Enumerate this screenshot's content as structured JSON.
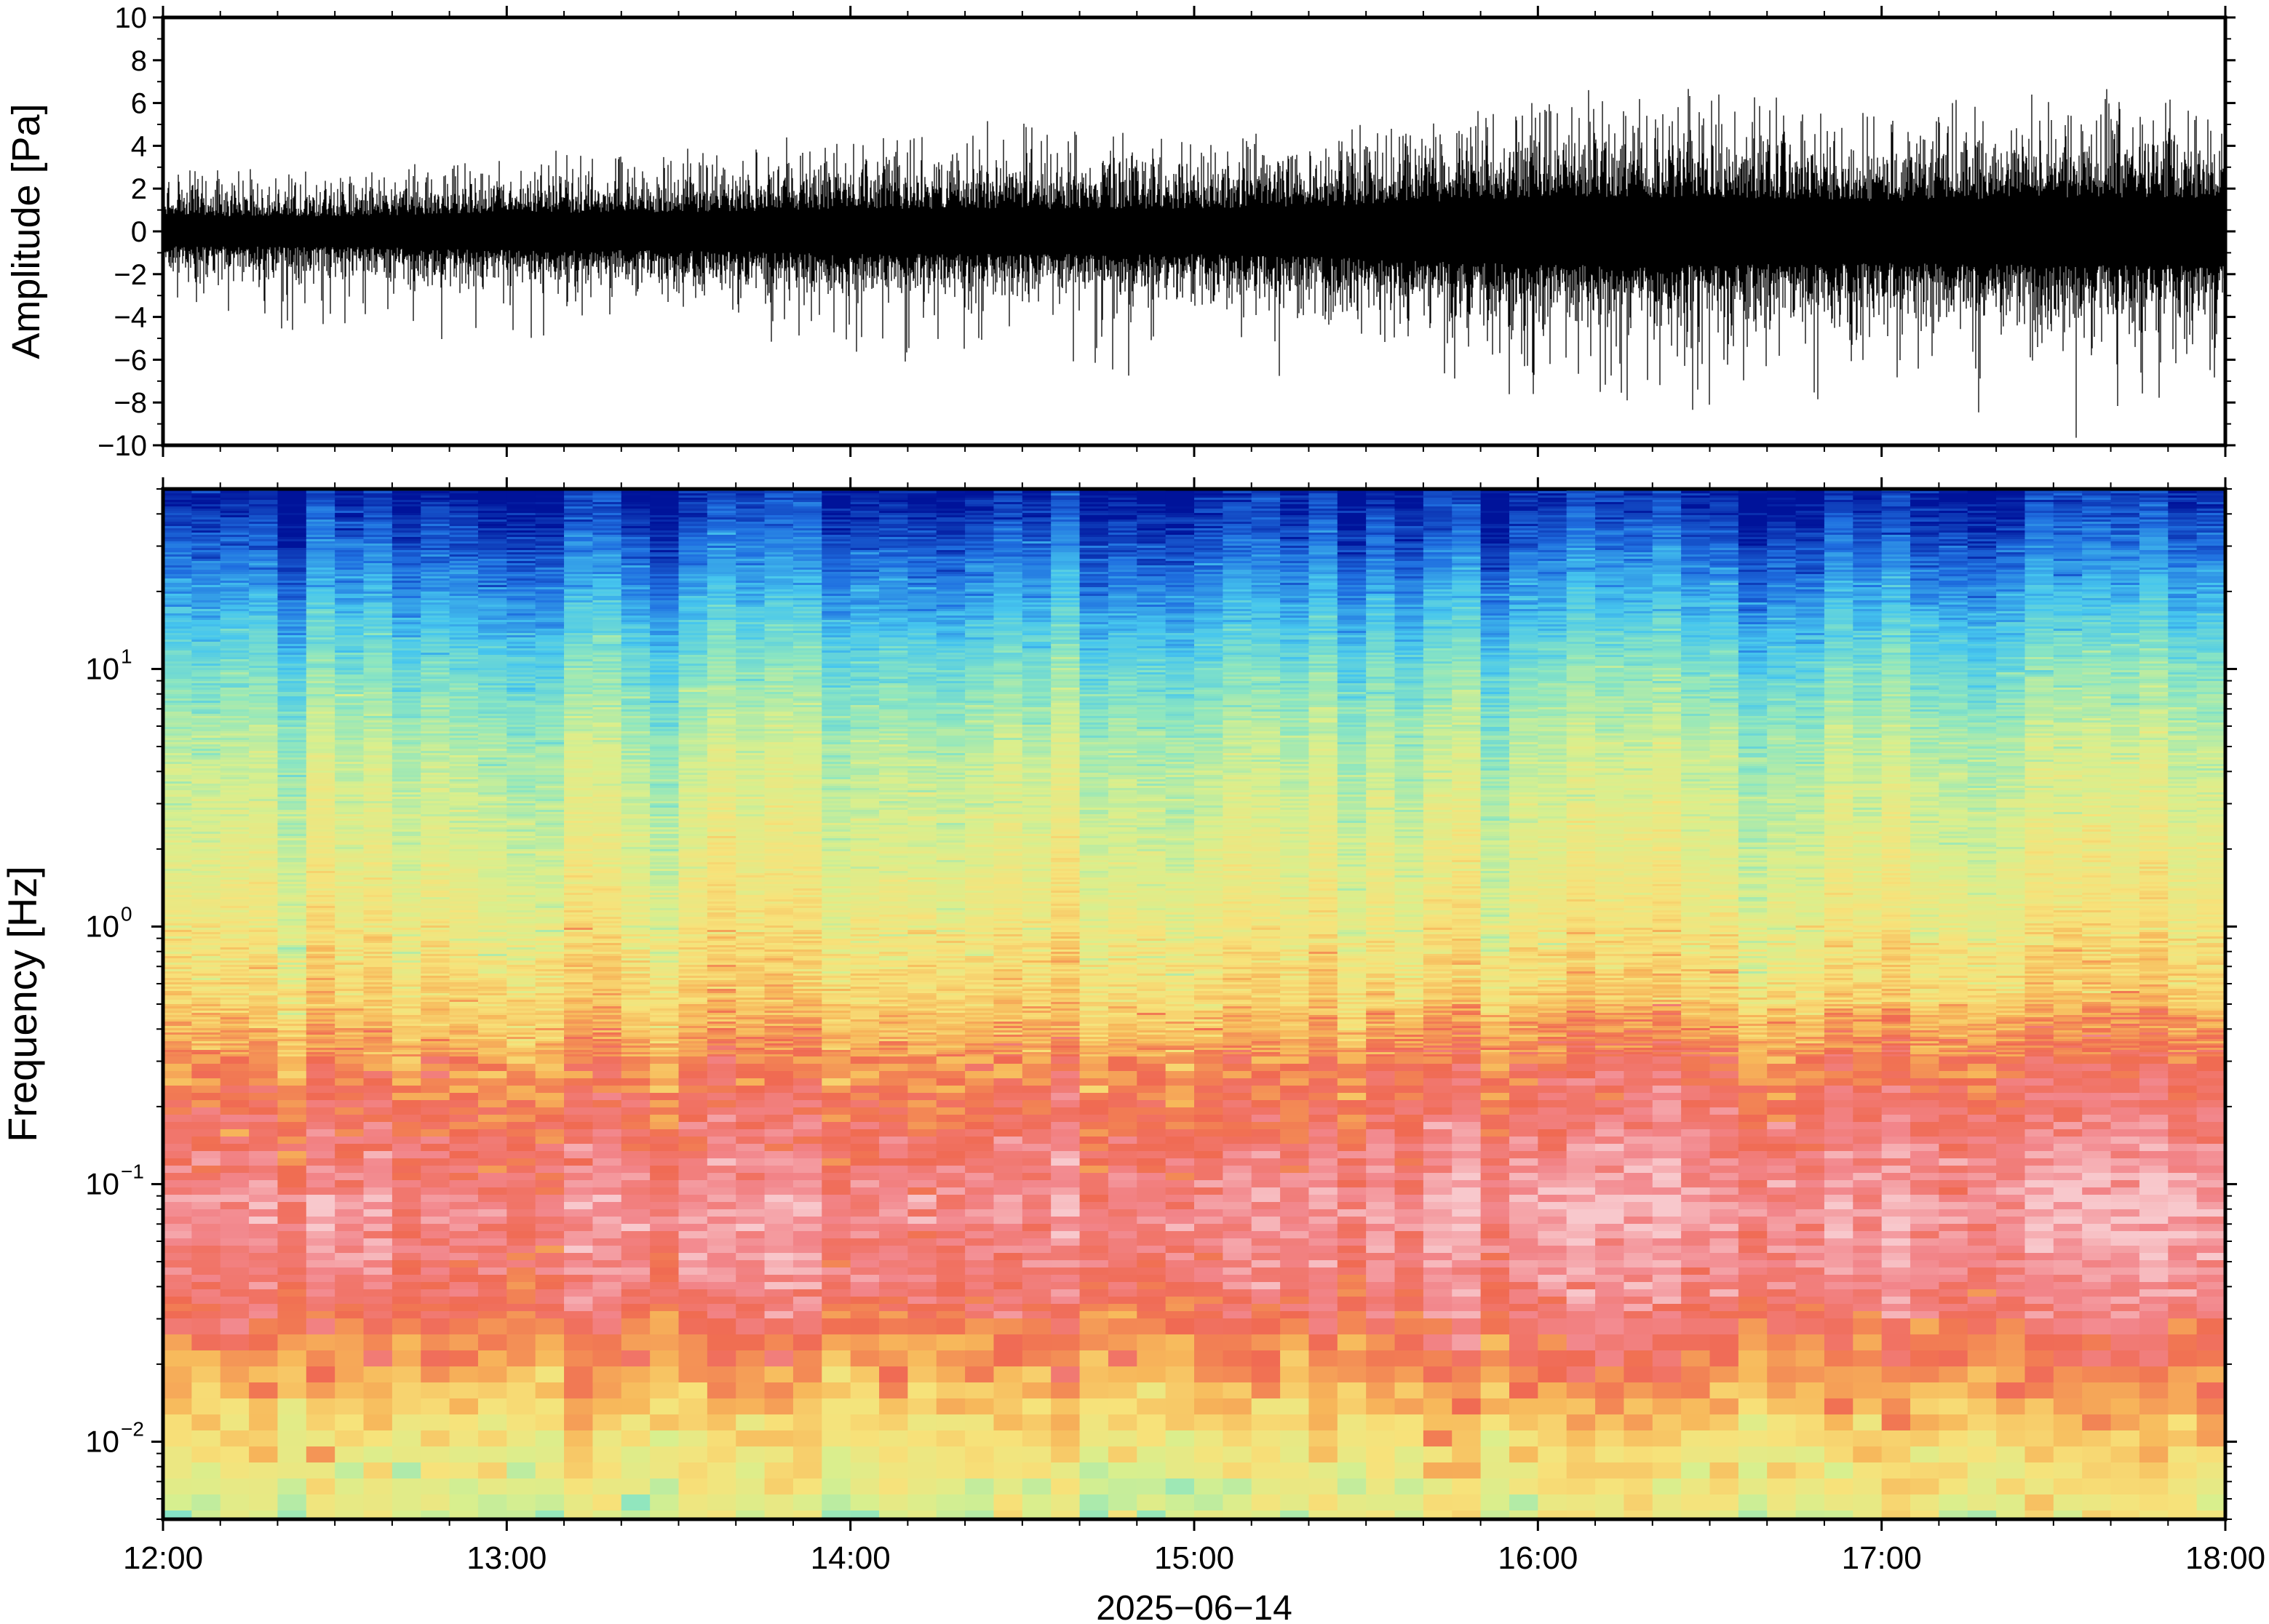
{
  "chart_data": [
    {
      "type": "line",
      "title": "",
      "xlabel": "",
      "ylabel": "Amplitude [Pa]",
      "xlim": [
        "12:00",
        "18:00"
      ],
      "ylim": [
        -10,
        10
      ],
      "yticks": [
        "10",
        "8",
        "6",
        "4",
        "2",
        "0",
        "−2",
        "−4",
        "−6",
        "−8",
        "−10"
      ],
      "grid": false,
      "series": [
        {
          "color": "#000000",
          "envelope_time": [
            "12:00",
            "12:30",
            "13:00",
            "13:30",
            "14:00",
            "14:30",
            "15:00",
            "15:30",
            "16:00",
            "16:30",
            "17:00",
            "17:30",
            "18:00"
          ],
          "typical_abs_max": [
            2,
            2,
            2.5,
            2.5,
            3,
            3,
            3,
            3.5,
            4.5,
            4.5,
            4,
            4.5,
            4.5
          ],
          "peak_max": [
            2.8,
            3,
            3.6,
            3.6,
            4.2,
            5.2,
            4.2,
            4.6,
            6.2,
            7,
            6,
            6.5,
            6
          ],
          "peak_min": [
            -4.2,
            -5,
            -5.3,
            -4,
            -6.5,
            -5.6,
            -7.5,
            -6,
            -8,
            -10,
            -7,
            -10,
            -7.3
          ]
        }
      ]
    },
    {
      "type": "heatmap",
      "title": "",
      "xlabel": "2025−06−14",
      "ylabel": "Frequency [Hz]",
      "xticks": [
        "12:00",
        "13:00",
        "14:00",
        "15:00",
        "16:00",
        "17:00",
        "18:00"
      ],
      "yscale": "log",
      "ylim": [
        0.005,
        50
      ],
      "yticks": [
        {
          "base": "10",
          "exp": "−2"
        },
        {
          "base": "10",
          "exp": "−1"
        },
        {
          "base": "10",
          "exp": "0"
        },
        {
          "base": "10",
          "exp": "1"
        }
      ],
      "colormap": "jet-like with white-pink top (high power)",
      "colormap_stops": [
        "#00139a",
        "#1f6fe0",
        "#46c6ee",
        "#8de6c0",
        "#d8ef8e",
        "#f7e27a",
        "#f7b75a",
        "#f06a52",
        "#f2858a",
        "#f8c8cc"
      ],
      "frequency_bands": [
        {
          "freq_hz": 45,
          "level": 0.02
        },
        {
          "freq_hz": 20,
          "level": 0.17
        },
        {
          "freq_hz": 10,
          "level": 0.3
        },
        {
          "freq_hz": 5,
          "level": 0.4
        },
        {
          "freq_hz": 2,
          "level": 0.47
        },
        {
          "freq_hz": 1,
          "level": 0.52
        },
        {
          "freq_hz": 0.5,
          "level": 0.6
        },
        {
          "freq_hz": 0.3,
          "level": 0.72
        },
        {
          "freq_hz": 0.15,
          "level": 0.82
        },
        {
          "freq_hz": 0.08,
          "level": 0.9
        },
        {
          "freq_hz": 0.04,
          "level": 0.84
        },
        {
          "freq_hz": 0.02,
          "level": 0.7
        },
        {
          "freq_hz": 0.01,
          "level": 0.54
        },
        {
          "freq_hz": 0.005,
          "level": 0.45
        }
      ],
      "time_trend": "low-frequency band slightly more energetic after 15:30",
      "grid": false
    }
  ]
}
